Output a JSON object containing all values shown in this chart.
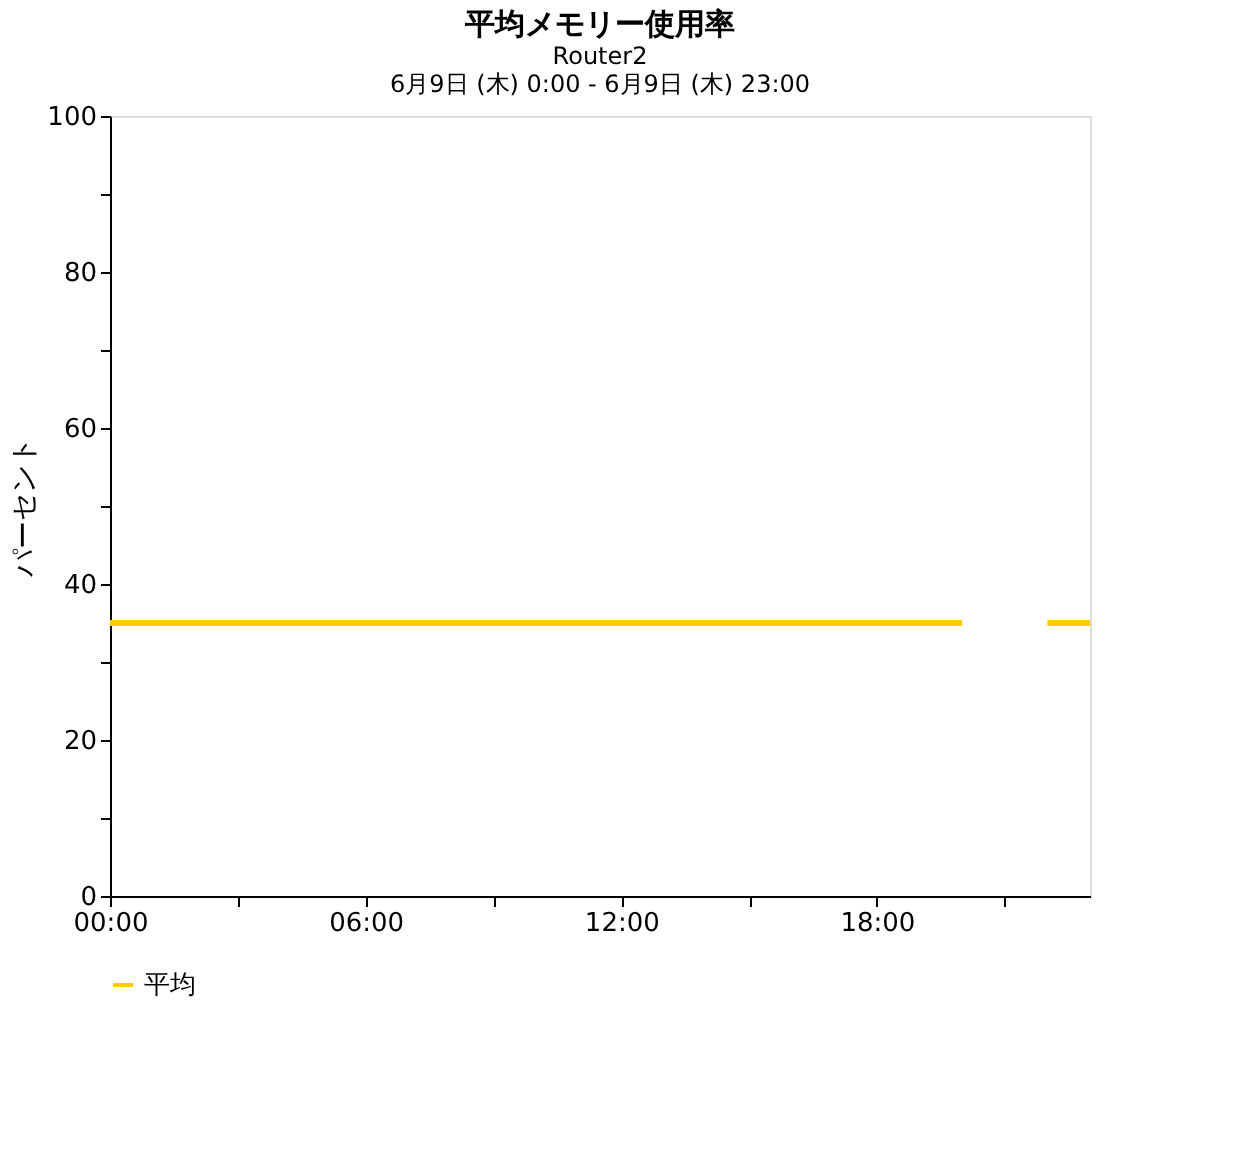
{
  "chart_data": {
    "type": "line",
    "title": "平均メモリー使用率",
    "subtitle": "Router2\n6月9日 (木) 0:00 - 6月9日 (木) 23:00",
    "ylabel": "パーセント",
    "x": [
      0,
      1,
      2,
      3,
      4,
      5,
      6,
      7,
      8,
      9,
      10,
      11,
      12,
      13,
      14,
      15,
      16,
      17,
      18,
      19,
      20,
      21,
      22,
      23
    ],
    "series": [
      {
        "name": "平均",
        "color": "#ffcc00",
        "values": [
          35,
          35,
          35,
          35,
          35,
          35,
          35,
          35,
          35,
          35,
          35,
          35,
          35,
          35,
          35,
          35,
          35,
          35,
          35,
          35,
          35,
          null,
          35,
          35
        ]
      }
    ],
    "xlim": [
      0,
      23
    ],
    "xticks": [
      {
        "value": 0,
        "label": "00:00"
      },
      {
        "value": 3,
        "label": null
      },
      {
        "value": 6,
        "label": "06:00"
      },
      {
        "value": 9,
        "label": null
      },
      {
        "value": 12,
        "label": "12:00"
      },
      {
        "value": 15,
        "label": null
      },
      {
        "value": 18,
        "label": "18:00"
      },
      {
        "value": 21,
        "label": null
      }
    ],
    "ylim": [
      0,
      100
    ],
    "yticks": [
      0,
      {
        "value": 10,
        "label": null
      },
      20,
      {
        "value": 30,
        "label": null
      },
      40,
      {
        "value": 50,
        "label": null
      },
      60,
      {
        "value": 70,
        "label": null
      },
      80,
      {
        "value": 90,
        "label": null
      },
      100
    ],
    "grid": false,
    "legend": "bottom",
    "marker": "none",
    "line_style": "solid"
  }
}
